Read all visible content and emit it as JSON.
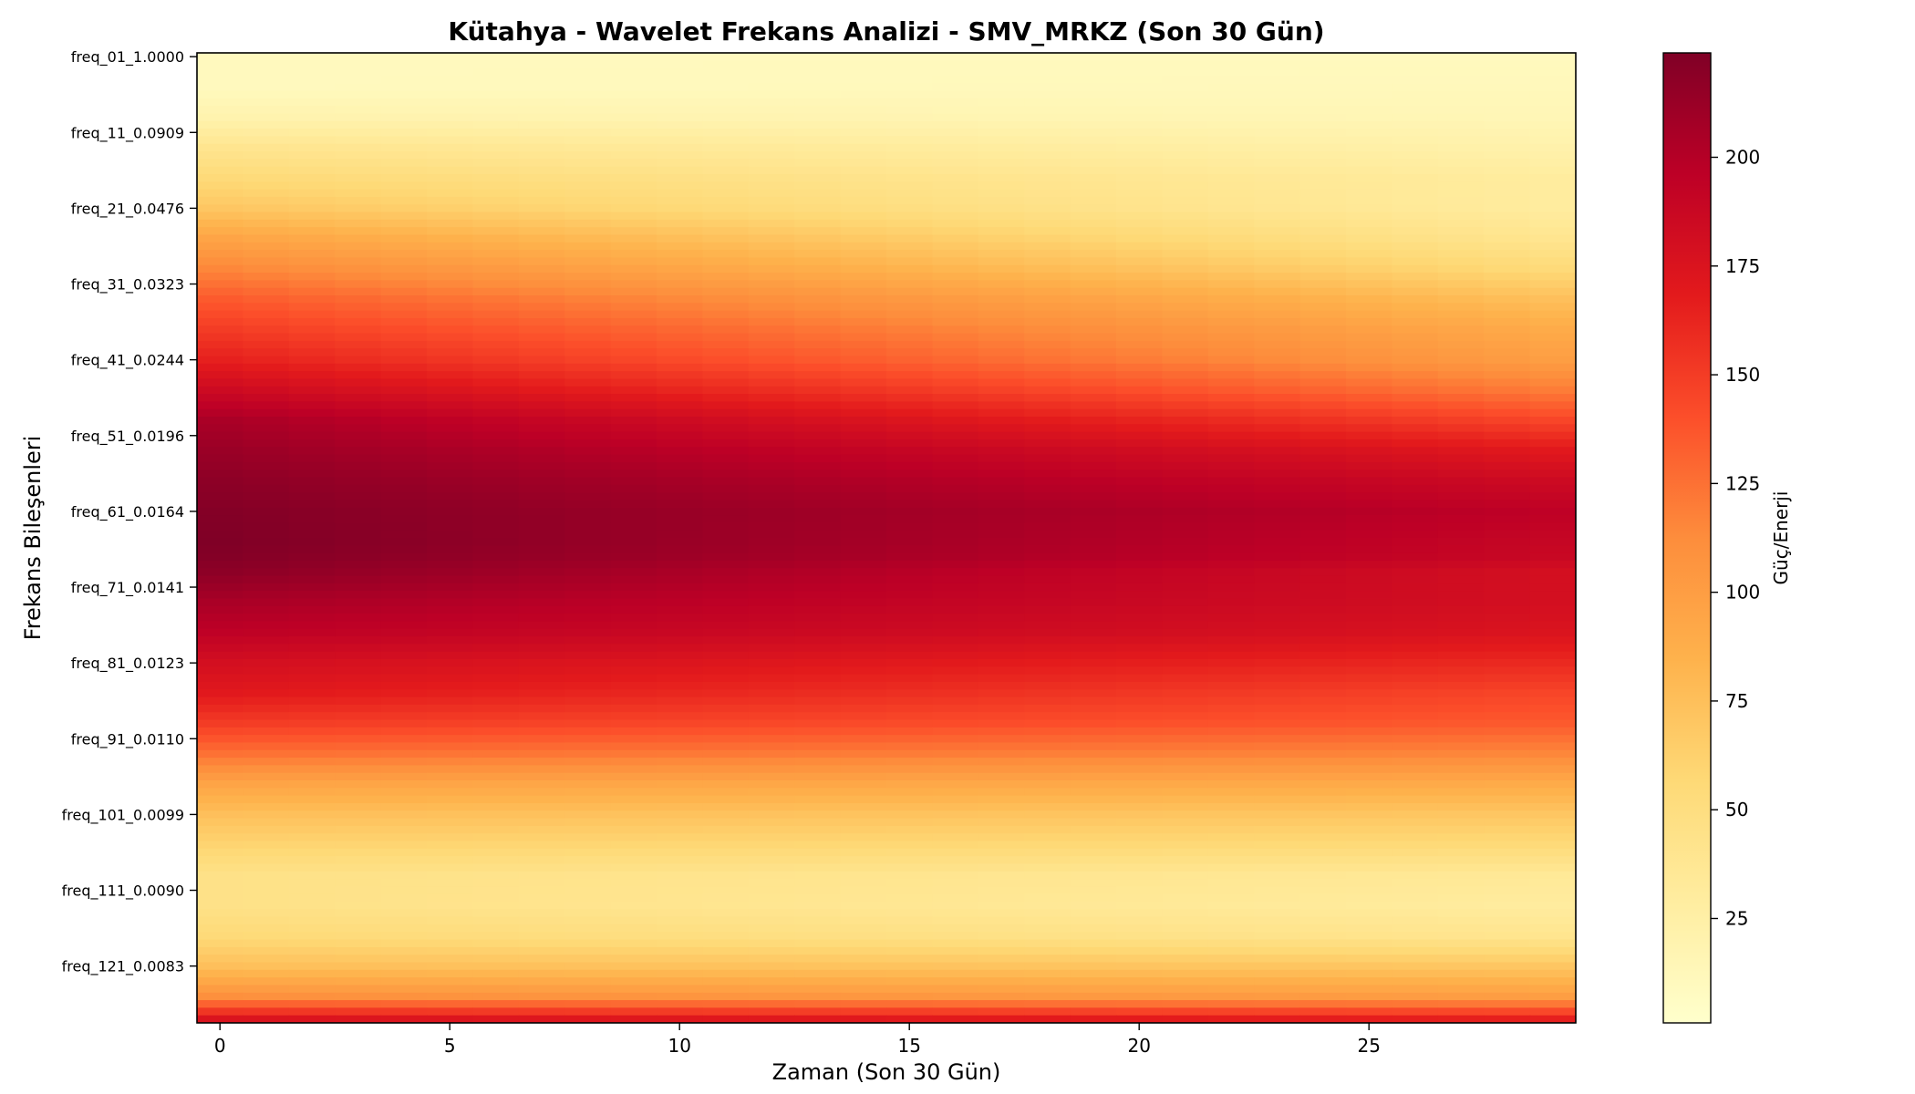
{
  "chart_data": {
    "type": "heatmap",
    "title": "Kütahya - Wavelet Frekans Analizi - SMV_MRKZ (Son 30 Gün)",
    "xlabel": "Zaman (Son 30 Gün)",
    "ylabel": "Frekans Bileşenleri",
    "colorbar_label": "Güç/Enerji",
    "colormap": "YlOrRd",
    "x": [
      0,
      1,
      2,
      3,
      4,
      5,
      6,
      7,
      8,
      9,
      10,
      11,
      12,
      13,
      14,
      15,
      16,
      17,
      18,
      19,
      20,
      21,
      22,
      23,
      24,
      25,
      26,
      27,
      28,
      29
    ],
    "x_ticks": [
      0,
      5,
      10,
      15,
      20,
      25
    ],
    "xlim": [
      -0.5,
      29.5
    ],
    "rows_total": 128,
    "y_tick_rows": [
      0,
      10,
      20,
      30,
      40,
      50,
      60,
      70,
      80,
      90,
      100,
      110,
      120
    ],
    "y_tick_labels": [
      "freq_01_1.0000",
      "freq_11_0.0909",
      "freq_21_0.0476",
      "freq_31_0.0323",
      "freq_41_0.0244",
      "freq_51_0.0196",
      "freq_61_0.0164",
      "freq_71_0.0141",
      "freq_81_0.0123",
      "freq_91_0.0110",
      "freq_101_0.0099",
      "freq_111_0.0090",
      "freq_121_0.0083"
    ],
    "colorbar_ticks": [
      25,
      50,
      75,
      100,
      125,
      150,
      175,
      200
    ],
    "value_range": [
      1,
      224
    ],
    "profile_rows": [
      0,
      4,
      8,
      12,
      16,
      20,
      24,
      28,
      32,
      36,
      40,
      44,
      48,
      52,
      56,
      60,
      64,
      66,
      68,
      72,
      76,
      80,
      84,
      88,
      92,
      96,
      100,
      104,
      108,
      112,
      116,
      120,
      124,
      127
    ],
    "profile_start": [
      10,
      10,
      20,
      40,
      55,
      70,
      95,
      115,
      135,
      150,
      165,
      185,
      205,
      212,
      218,
      222,
      224,
      222,
      218,
      205,
      195,
      180,
      170,
      150,
      125,
      95,
      75,
      60,
      45,
      45,
      55,
      75,
      110,
      175
    ],
    "profile_end": [
      10,
      12,
      15,
      22,
      30,
      30,
      40,
      55,
      75,
      90,
      100,
      120,
      145,
      170,
      185,
      195,
      190,
      188,
      180,
      180,
      175,
      160,
      145,
      135,
      115,
      90,
      70,
      55,
      35,
      30,
      40,
      70,
      100,
      165
    ]
  }
}
